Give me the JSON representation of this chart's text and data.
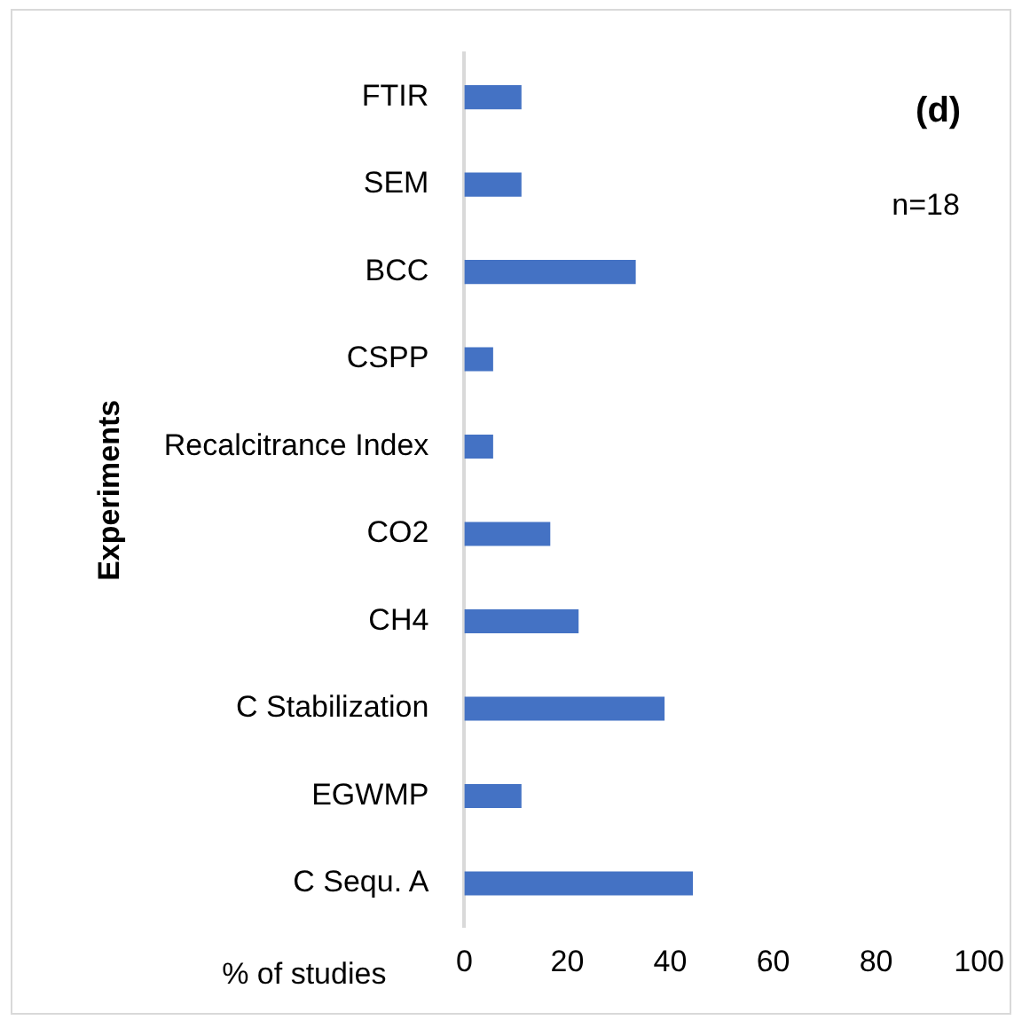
{
  "chart_data": {
    "type": "bar",
    "orientation": "horizontal",
    "title": "(d)",
    "xlabel": "% of studies",
    "ylabel": "Experiments",
    "annotations": [
      "n=18"
    ],
    "categories": [
      "FTIR",
      "SEM",
      "BCC",
      "CSPP",
      "Recalcitrance Index",
      "CO2",
      "CH4",
      "C Stabilization",
      "EGWMP",
      "C Sequ. A"
    ],
    "values": [
      11.1,
      11.1,
      33.3,
      5.6,
      5.6,
      16.7,
      22.2,
      38.9,
      11.1,
      44.4
    ],
    "color": "#4472c4",
    "xlim": [
      0,
      100
    ],
    "xticks": [
      0,
      20,
      40,
      60,
      80,
      100
    ],
    "grid": false,
    "legend": false
  }
}
